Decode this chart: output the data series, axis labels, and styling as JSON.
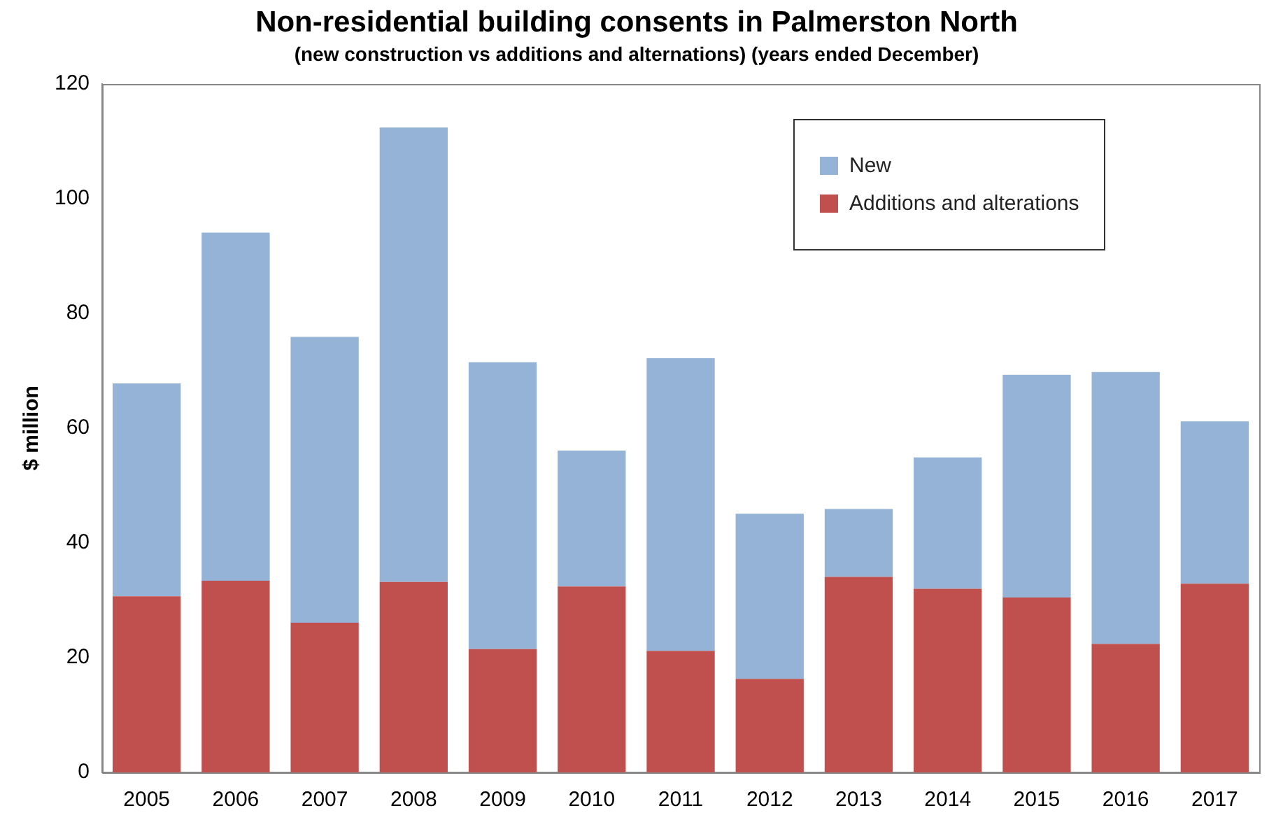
{
  "chart_data": {
    "type": "bar",
    "title": "Non-residential building consents in Palmerston North",
    "subtitle": "(new construction vs additions and alternations) (years ended December)",
    "ylabel": "$ million",
    "categories": [
      "2005",
      "2006",
      "2007",
      "2008",
      "2009",
      "2010",
      "2011",
      "2012",
      "2013",
      "2014",
      "2015",
      "2016",
      "2017"
    ],
    "series": [
      {
        "name": "Additions and alterations",
        "color": "#c0504d",
        "values": [
          30.7,
          33.4,
          26.1,
          33.2,
          21.5,
          32.4,
          21.2,
          16.3,
          34.1,
          32.0,
          30.5,
          22.4,
          32.9
        ]
      },
      {
        "name": "New",
        "color": "#95b3d7",
        "values": [
          37.1,
          60.7,
          49.8,
          79.2,
          50.0,
          23.7,
          51.0,
          28.8,
          11.8,
          22.9,
          38.8,
          47.4,
          28.3
        ]
      }
    ],
    "stacked": true,
    "ylim": [
      0,
      120
    ],
    "yticks": [
      0,
      20,
      40,
      60,
      80,
      100,
      120
    ],
    "grid": false,
    "legend": "top right"
  }
}
